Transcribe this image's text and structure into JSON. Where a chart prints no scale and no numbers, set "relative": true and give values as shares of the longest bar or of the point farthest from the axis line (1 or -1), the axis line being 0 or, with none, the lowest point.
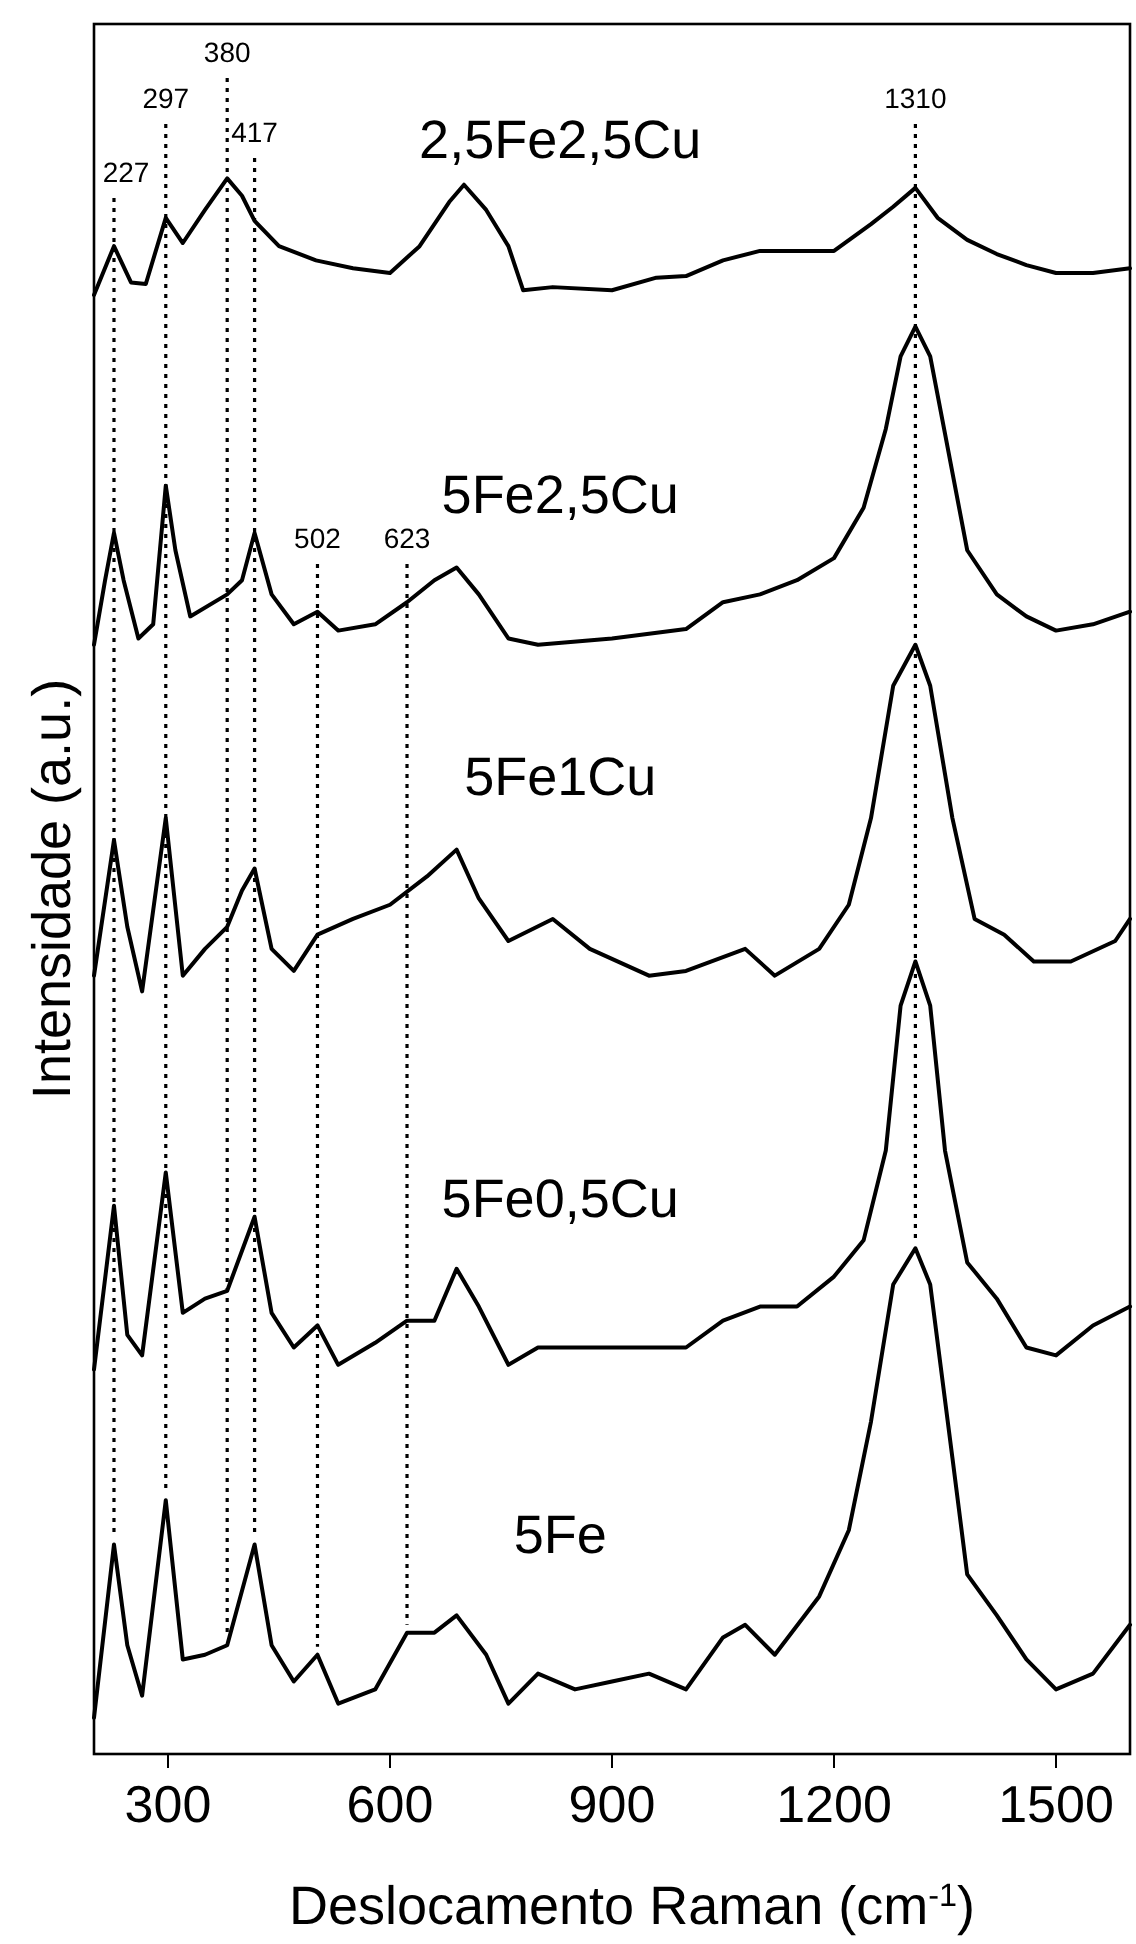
{
  "chart_data": {
    "type": "line",
    "relative": true,
    "xlabel": "Deslocamento Raman (cm$^{-1}$)",
    "ylabel": "Intensidade (a.u.)",
    "xlim": [
      200,
      1600
    ],
    "xticks": [
      300,
      600,
      900,
      1200,
      1500
    ],
    "grid": false,
    "marker": "none",
    "line_style": "solid",
    "x": [
      200,
      227,
      250,
      270,
      297,
      320,
      350,
      380,
      400,
      417,
      450,
      500,
      550,
      600,
      640,
      680,
      700,
      730,
      760,
      780,
      820,
      900,
      960,
      1000,
      1050,
      1100,
      1150,
      1200,
      1250,
      1280,
      1310,
      1340,
      1380,
      1420,
      1460,
      1500,
      1550,
      1600
    ],
    "series": [
      {
        "name": "2,5Fe2,5Cu",
        "color": "#000000",
        "values": [
          0.926,
          0.957,
          0.934,
          0.933,
          0.975,
          0.959,
          0.98,
          1.0,
          0.989,
          0.973,
          0.957,
          0.948,
          0.943,
          0.94,
          0.957,
          0.985,
          0.996,
          0.98,
          0.957,
          0.929,
          0.931,
          0.929,
          0.937,
          0.938,
          0.948,
          0.954,
          0.954,
          0.954,
          0.971,
          0.982,
          0.994,
          0.975,
          0.961,
          0.952,
          0.945,
          0.94,
          0.94,
          0.943
        ]
      },
      {
        "name": "5Fe2,5Cu",
        "color": "#000000",
        "x": [
          200,
          215,
          227,
          240,
          260,
          280,
          297,
          310,
          330,
          380,
          400,
          417,
          440,
          470,
          502,
          530,
          580,
          623,
          660,
          690,
          720,
          760,
          800,
          900,
          1000,
          1050,
          1100,
          1150,
          1200,
          1240,
          1270,
          1290,
          1310,
          1330,
          1350,
          1380,
          1420,
          1460,
          1500,
          1550,
          1600
        ],
        "values": [
          0.704,
          0.745,
          0.775,
          0.745,
          0.708,
          0.717,
          0.805,
          0.764,
          0.722,
          0.736,
          0.745,
          0.775,
          0.736,
          0.717,
          0.725,
          0.713,
          0.717,
          0.731,
          0.745,
          0.753,
          0.736,
          0.708,
          0.704,
          0.708,
          0.714,
          0.731,
          0.736,
          0.745,
          0.759,
          0.791,
          0.841,
          0.887,
          0.906,
          0.887,
          0.838,
          0.764,
          0.736,
          0.722,
          0.713,
          0.717,
          0.725
        ]
      },
      {
        "name": "5Fe1Cu",
        "color": "#000000",
        "x": [
          200,
          227,
          245,
          265,
          297,
          320,
          350,
          380,
          400,
          417,
          440,
          470,
          502,
          550,
          600,
          650,
          690,
          720,
          760,
          820,
          870,
          950,
          1000,
          1080,
          1120,
          1180,
          1220,
          1250,
          1280,
          1310,
          1330,
          1360,
          1390,
          1430,
          1470,
          1520,
          1580,
          1600
        ],
        "values": [
          0.494,
          0.58,
          0.525,
          0.484,
          0.594,
          0.494,
          0.511,
          0.525,
          0.548,
          0.562,
          0.511,
          0.497,
          0.52,
          0.53,
          0.539,
          0.557,
          0.574,
          0.543,
          0.516,
          0.53,
          0.511,
          0.494,
          0.497,
          0.511,
          0.494,
          0.511,
          0.539,
          0.594,
          0.678,
          0.704,
          0.678,
          0.594,
          0.53,
          0.52,
          0.503,
          0.503,
          0.516,
          0.53
        ]
      },
      {
        "name": "5Fe0,5Cu",
        "color": "#000000",
        "x": [
          200,
          227,
          245,
          265,
          297,
          320,
          350,
          380,
          417,
          440,
          470,
          502,
          530,
          580,
          623,
          660,
          690,
          720,
          760,
          800,
          900,
          1000,
          1050,
          1100,
          1150,
          1200,
          1240,
          1270,
          1290,
          1310,
          1330,
          1350,
          1380,
          1420,
          1460,
          1500,
          1550,
          1600
        ],
        "values": [
          0.244,
          0.348,
          0.266,
          0.253,
          0.369,
          0.28,
          0.289,
          0.294,
          0.341,
          0.28,
          0.258,
          0.272,
          0.247,
          0.261,
          0.275,
          0.275,
          0.308,
          0.284,
          0.247,
          0.258,
          0.258,
          0.258,
          0.275,
          0.284,
          0.284,
          0.303,
          0.326,
          0.383,
          0.475,
          0.503,
          0.475,
          0.383,
          0.312,
          0.289,
          0.258,
          0.253,
          0.272,
          0.284
        ]
      },
      {
        "name": "5Fe",
        "color": "#000000",
        "x": [
          200,
          227,
          245,
          265,
          297,
          320,
          350,
          380,
          417,
          440,
          470,
          502,
          530,
          580,
          623,
          660,
          690,
          730,
          760,
          800,
          850,
          900,
          950,
          1000,
          1050,
          1080,
          1120,
          1180,
          1220,
          1250,
          1280,
          1310,
          1330,
          1360,
          1380,
          1420,
          1460,
          1500,
          1550,
          1600
        ],
        "values": [
          0.023,
          0.133,
          0.069,
          0.037,
          0.161,
          0.06,
          0.063,
          0.069,
          0.133,
          0.069,
          0.046,
          0.063,
          0.032,
          0.041,
          0.077,
          0.077,
          0.088,
          0.063,
          0.032,
          0.051,
          0.041,
          0.046,
          0.051,
          0.041,
          0.074,
          0.082,
          0.063,
          0.1,
          0.142,
          0.211,
          0.298,
          0.321,
          0.298,
          0.188,
          0.114,
          0.088,
          0.06,
          0.041,
          0.051,
          0.082
        ]
      }
    ],
    "ref_lines": [
      {
        "axis": "x",
        "value": 227,
        "label": "227",
        "line_style": "dotted",
        "color": "#000000"
      },
      {
        "axis": "x",
        "value": 297,
        "label": "297",
        "line_style": "dotted",
        "color": "#000000"
      },
      {
        "axis": "x",
        "value": 380,
        "label": "380",
        "line_style": "dotted",
        "color": "#000000"
      },
      {
        "axis": "x",
        "value": 417,
        "label": "417",
        "line_style": "dotted",
        "color": "#000000"
      },
      {
        "axis": "x",
        "value": 502,
        "label": "502",
        "line_style": "dotted",
        "color": "#000000"
      },
      {
        "axis": "x",
        "value": 623,
        "label": "623",
        "line_style": "dotted",
        "color": "#000000"
      },
      {
        "axis": "x",
        "value": 1310,
        "label": "1310",
        "line_style": "dotted",
        "color": "#000000"
      }
    ]
  }
}
